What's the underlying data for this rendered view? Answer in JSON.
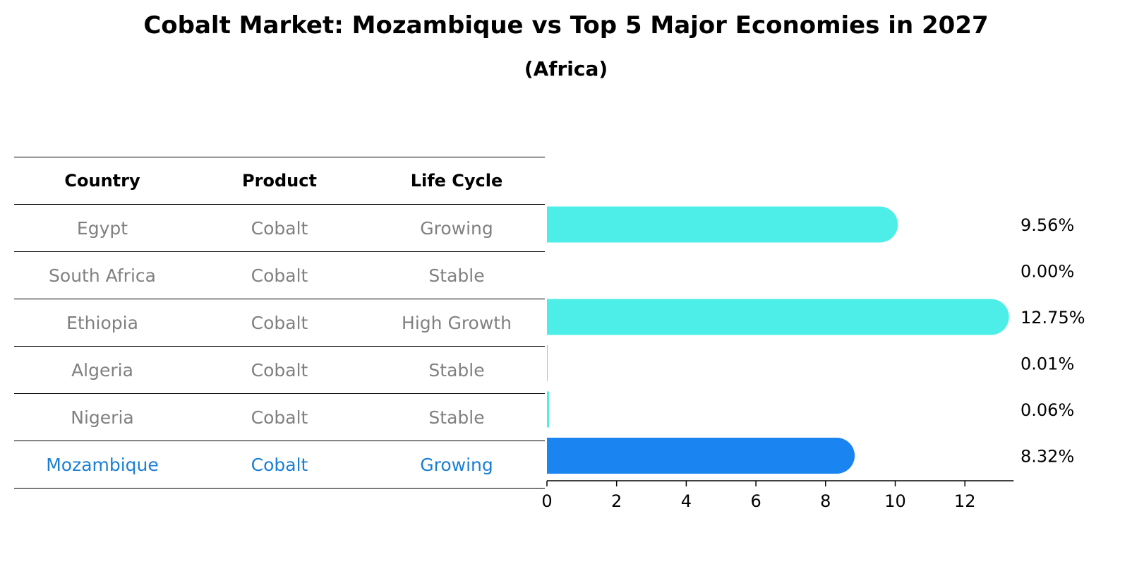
{
  "title": "Cobalt Market: Mozambique vs Top 5 Major Economies in 2027",
  "subtitle": "(Africa)",
  "table": {
    "headers": [
      "Country",
      "Product",
      "Life Cycle"
    ],
    "rows": [
      {
        "country": "Egypt",
        "product": "Cobalt",
        "life_cycle": "Growing"
      },
      {
        "country": "South Africa",
        "product": "Cobalt",
        "life_cycle": "Stable"
      },
      {
        "country": "Ethiopia",
        "product": "Cobalt",
        "life_cycle": "High Growth"
      },
      {
        "country": "Algeria",
        "product": "Cobalt",
        "life_cycle": "Stable"
      },
      {
        "country": "Nigeria",
        "product": "Cobalt",
        "life_cycle": "Stable"
      },
      {
        "country": "Mozambique",
        "product": "Cobalt",
        "life_cycle": "Growing"
      }
    ]
  },
  "chart_data": {
    "type": "bar",
    "orientation": "horizontal",
    "categories": [
      "Egypt",
      "South Africa",
      "Ethiopia",
      "Algeria",
      "Nigeria",
      "Mozambique"
    ],
    "values": [
      9.56,
      0.0,
      12.75,
      0.01,
      0.06,
      8.32
    ],
    "value_labels": [
      "9.56%",
      "0.00%",
      "12.75%",
      "0.01%",
      "0.06%",
      "8.32%"
    ],
    "highlight_index": 5,
    "xlim": [
      0,
      13.4
    ],
    "x_ticks": [
      0,
      2,
      4,
      6,
      8,
      10,
      12
    ],
    "x_tick_labels": [
      "0",
      "2",
      "4",
      "6",
      "8",
      "10",
      "12"
    ],
    "colors": {
      "bar": "#4deee8",
      "highlight": "#1a85f0",
      "highlight_text": "#1a7fd4",
      "muted_text": "#808080"
    }
  }
}
